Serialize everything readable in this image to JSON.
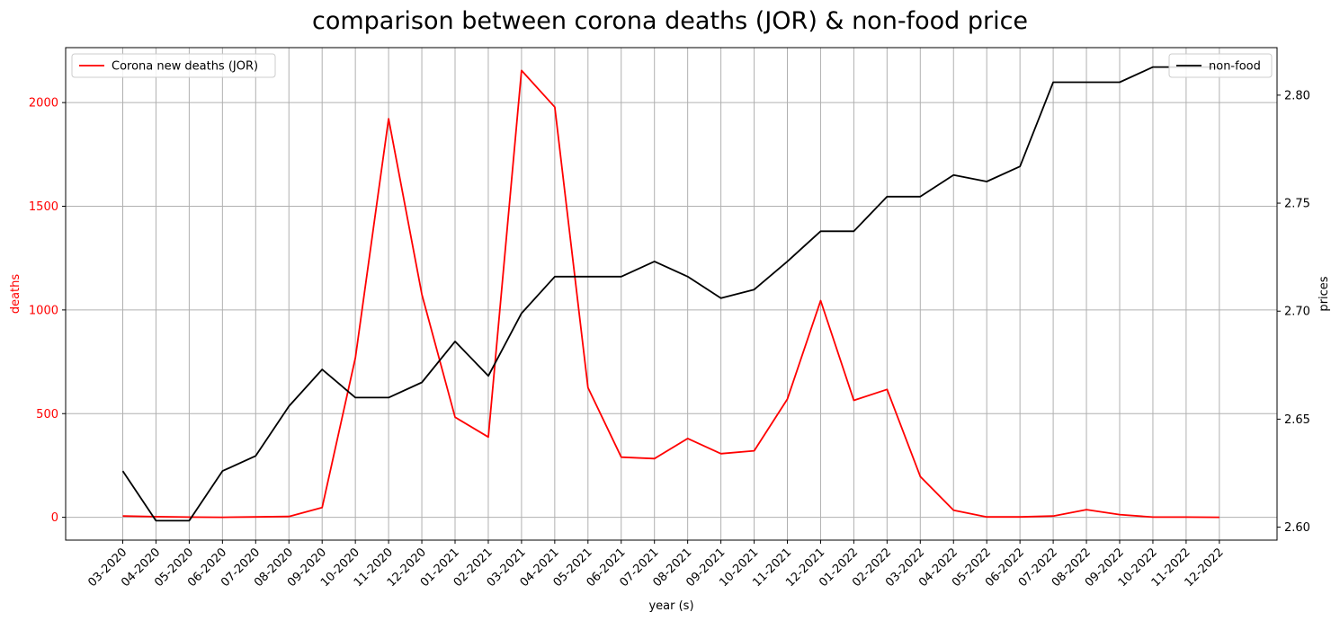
{
  "chart_data": {
    "type": "line",
    "title": "comparison between corona deaths (JOR) & non-food price",
    "xlabel": "year (s)",
    "categories": [
      "03-2020",
      "04-2020",
      "05-2020",
      "06-2020",
      "07-2020",
      "08-2020",
      "09-2020",
      "10-2020",
      "11-2020",
      "12-2020",
      "01-2021",
      "02-2021",
      "03-2021",
      "04-2021",
      "05-2021",
      "06-2021",
      "07-2021",
      "08-2021",
      "09-2021",
      "10-2021",
      "11-2021",
      "12-2021",
      "01-2022",
      "02-2022",
      "03-2022",
      "04-2022",
      "05-2022",
      "06-2022",
      "07-2022",
      "08-2022",
      "09-2022",
      "10-2022",
      "11-2022",
      "12-2022"
    ],
    "grid": true,
    "left_axis": {
      "label": "deaths",
      "color": "#ff0000",
      "ylim": [
        -110,
        2265
      ],
      "ticks": [
        0,
        500,
        1000,
        1500,
        2000
      ]
    },
    "right_axis": {
      "label": "prices",
      "color": "#000000",
      "ylim": [
        2.594,
        2.822
      ],
      "ticks": [
        "2.60",
        "2.65",
        "2.70",
        "2.75",
        "2.80"
      ]
    },
    "series": [
      {
        "name": "Corona new deaths (JOR)",
        "axis": "left",
        "color": "#ff0000",
        "legend_position": "upper left",
        "values": [
          6,
          3,
          1,
          0,
          2,
          4,
          47,
          770,
          1922,
          1075,
          483,
          387,
          2155,
          1978,
          625,
          290,
          283,
          380,
          307,
          321,
          570,
          1045,
          564,
          617,
          197,
          34,
          2,
          2,
          6,
          37,
          13,
          1,
          1,
          0
        ]
      },
      {
        "name": "non-food",
        "axis": "right",
        "color": "#000000",
        "legend_position": "upper right",
        "values": [
          2.626,
          2.603,
          2.603,
          2.626,
          2.633,
          2.656,
          2.673,
          2.66,
          2.66,
          2.667,
          2.686,
          2.67,
          2.699,
          2.716,
          2.716,
          2.716,
          2.723,
          2.716,
          2.706,
          2.71,
          2.723,
          2.737,
          2.737,
          2.753,
          2.753,
          2.763,
          2.76,
          2.767,
          2.806,
          2.806,
          2.806,
          2.813,
          2.813,
          2.813
        ]
      }
    ]
  }
}
